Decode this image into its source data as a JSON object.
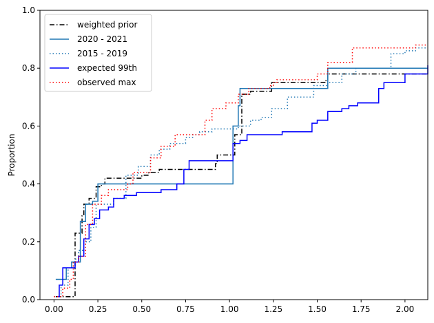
{
  "chart_data": {
    "type": "line",
    "step": "post",
    "title": "",
    "xlabel": "",
    "ylabel": "Proportion",
    "xlim": [
      -0.08,
      2.13
    ],
    "ylim": [
      0.0,
      1.0
    ],
    "xticks": [
      0.0,
      0.25,
      0.5,
      0.75,
      1.0,
      1.25,
      1.5,
      1.75,
      2.0
    ],
    "xtick_labels": [
      "0.00",
      "0.25",
      "0.50",
      "0.75",
      "1.00",
      "1.25",
      "1.50",
      "1.75",
      "2.00"
    ],
    "yticks": [
      0.0,
      0.2,
      0.4,
      0.6,
      0.8,
      1.0
    ],
    "ytick_labels": [
      "0.0",
      "0.2",
      "0.4",
      "0.6",
      "0.8",
      "1.0"
    ],
    "grid": false,
    "legend_position": "top-left",
    "series": [
      {
        "name": "weighted prior",
        "color": "#000000",
        "dash": "7,3,1.5,3",
        "x": [
          0.01,
          0.04,
          0.12,
          0.13,
          0.16,
          0.17,
          0.18,
          0.2,
          0.21,
          0.24,
          0.27,
          0.29,
          0.42,
          0.5,
          0.54,
          0.6,
          0.88,
          0.92,
          0.93,
          1.03,
          1.07,
          1.12,
          1.14,
          1.24,
          1.55,
          1.56,
          2.13
        ],
        "y": [
          0.01,
          0.01,
          0.23,
          0.23,
          0.29,
          0.33,
          0.33,
          0.35,
          0.35,
          0.39,
          0.4,
          0.42,
          0.42,
          0.43,
          0.44,
          0.45,
          0.45,
          0.47,
          0.5,
          0.57,
          0.71,
          0.72,
          0.72,
          0.75,
          0.76,
          0.78,
          0.78
        ]
      },
      {
        "name": "2020 - 2021",
        "color": "#1f77b4",
        "dash": "",
        "x": [
          0.01,
          0.03,
          0.05,
          0.07,
          0.1,
          0.15,
          0.18,
          0.22,
          0.25,
          0.87,
          1.02,
          1.05,
          1.06,
          1.18,
          1.56,
          2.13
        ],
        "y": [
          0.07,
          0.07,
          0.07,
          0.11,
          0.13,
          0.27,
          0.33,
          0.34,
          0.4,
          0.4,
          0.6,
          0.67,
          0.73,
          0.73,
          0.8,
          0.8
        ]
      },
      {
        "name": "2015 - 2019",
        "color": "#1f77b4",
        "dash": "1.5,3",
        "x": [
          0.0,
          0.04,
          0.08,
          0.12,
          0.14,
          0.18,
          0.21,
          0.24,
          0.34,
          0.41,
          0.48,
          0.55,
          0.6,
          0.66,
          0.75,
          0.79,
          0.83,
          0.9,
          1.05,
          1.12,
          1.18,
          1.24,
          1.29,
          1.33,
          1.48,
          1.56,
          1.64,
          1.72,
          1.78,
          1.92,
          2.0,
          2.06,
          2.1,
          2.13
        ],
        "y": [
          0.01,
          0.05,
          0.11,
          0.14,
          0.17,
          0.2,
          0.25,
          0.33,
          0.35,
          0.43,
          0.46,
          0.5,
          0.52,
          0.54,
          0.56,
          0.57,
          0.58,
          0.59,
          0.6,
          0.62,
          0.63,
          0.66,
          0.66,
          0.7,
          0.74,
          0.75,
          0.78,
          0.8,
          0.8,
          0.85,
          0.86,
          0.87,
          0.87,
          0.87
        ]
      },
      {
        "name": "expected 99th",
        "color": "#0000ff",
        "dash": "",
        "x": [
          0.02,
          0.03,
          0.05,
          0.07,
          0.12,
          0.14,
          0.17,
          0.2,
          0.23,
          0.26,
          0.31,
          0.34,
          0.4,
          0.47,
          0.52,
          0.61,
          0.7,
          0.74,
          0.77,
          0.85,
          1.02,
          1.06,
          1.1,
          1.3,
          1.47,
          1.5,
          1.56,
          1.64,
          1.68,
          1.73,
          1.85,
          1.88,
          2.0,
          2.13
        ],
        "y": [
          0.01,
          0.05,
          0.11,
          0.11,
          0.13,
          0.15,
          0.21,
          0.26,
          0.28,
          0.31,
          0.32,
          0.35,
          0.36,
          0.37,
          0.37,
          0.38,
          0.4,
          0.45,
          0.48,
          0.48,
          0.54,
          0.55,
          0.57,
          0.58,
          0.61,
          0.62,
          0.65,
          0.66,
          0.67,
          0.68,
          0.73,
          0.75,
          0.78,
          0.81
        ]
      },
      {
        "name": "observed max",
        "color": "#ff0000",
        "dash": "1.5,3",
        "x": [
          0.0,
          0.05,
          0.09,
          0.11,
          0.14,
          0.18,
          0.22,
          0.27,
          0.31,
          0.42,
          0.45,
          0.55,
          0.61,
          0.69,
          0.86,
          0.9,
          0.98,
          1.05,
          1.11,
          1.23,
          1.25,
          1.27,
          1.5,
          1.56,
          1.7,
          1.88,
          2.06,
          2.13
        ],
        "y": [
          0.01,
          0.04,
          0.07,
          0.13,
          0.15,
          0.26,
          0.33,
          0.36,
          0.38,
          0.4,
          0.44,
          0.49,
          0.53,
          0.57,
          0.62,
          0.66,
          0.68,
          0.71,
          0.73,
          0.74,
          0.75,
          0.76,
          0.78,
          0.82,
          0.87,
          0.87,
          0.88,
          0.88
        ]
      }
    ]
  }
}
